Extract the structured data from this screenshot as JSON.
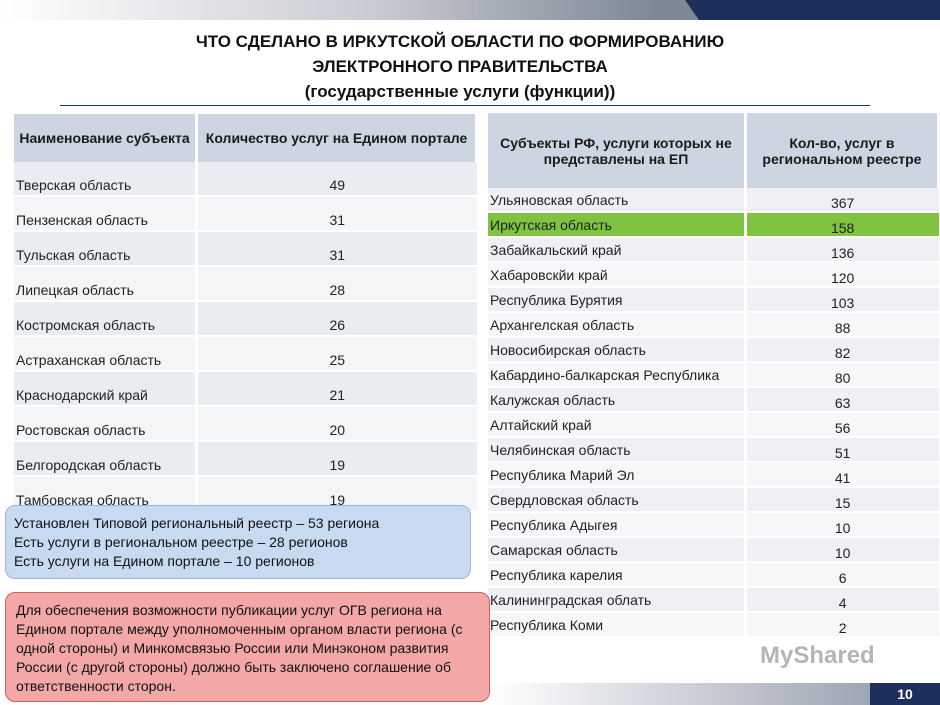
{
  "header": {
    "title_lines": [
      "ЧТО СДЕЛАНО В ИРКУТСКОЙ ОБЛАСТИ ПО ФОРМИРОВАНИЮ",
      "ЭЛЕКТРОННОГО ПРАВИТЕЛЬСТВА",
      "(государственные услуги (функции))"
    ]
  },
  "left_table": {
    "columns": [
      "Наименование субъекта",
      "Количество услуг на Едином портале"
    ],
    "rows": [
      [
        "Тверская область",
        "49"
      ],
      [
        "Пензенская область",
        "31"
      ],
      [
        "Тульская область",
        "31"
      ],
      [
        "Липецкая область",
        "28"
      ],
      [
        "Костромская область",
        "26"
      ],
      [
        "Астраханская область",
        "25"
      ],
      [
        "Краснодарский край",
        "21"
      ],
      [
        "Ростовская область",
        "20"
      ],
      [
        "Белгородская область",
        "19"
      ],
      [
        "Тамбовская область",
        "19"
      ]
    ]
  },
  "right_table": {
    "columns": [
      "Субъекты РФ, услуги которых не представлены на ЕП",
      "Кол-во, услуг в региональном реестре"
    ],
    "rows": [
      [
        "Ульяновская область",
        "367"
      ],
      [
        "Иркутская область",
        "158"
      ],
      [
        "Забайкальский край",
        "136"
      ],
      [
        "Хабаровскйи край",
        "120"
      ],
      [
        "Республика Бурятия",
        "103"
      ],
      [
        "Архангелская область",
        "88"
      ],
      [
        "Новосибирская область",
        "82"
      ],
      [
        "Кабардино-балкарская Республика",
        "80"
      ],
      [
        "Калужская область",
        "63"
      ],
      [
        "Алтайский край",
        "56"
      ],
      [
        "Челябинская область",
        "51"
      ],
      [
        "Республика Марий Эл",
        "41"
      ],
      [
        "Свердловская область",
        "15"
      ],
      [
        "Республика Адыгея",
        "10"
      ],
      [
        "Самарская область",
        "10"
      ],
      [
        "Республика карелия",
        "6"
      ],
      [
        "Калининградская облать",
        "4"
      ],
      [
        "Республика Коми",
        "2"
      ]
    ]
  },
  "info_note": {
    "lines": [
      "Установлен Типовой региональный реестр – 53 региона",
      "Есть услуги в региональном реестре – 28 регионов",
      "Есть услуги на Едином портале – 10 регионов"
    ]
  },
  "warning_note": {
    "text": "Для обеспечения возможности публикации услуг ОГВ региона на Едином портале между уполномоченным органом власти региона (с одной стороны) и Минкомсвязью России или Минэконом развития России (с другой стороны) должно быть заключено соглашение об ответственности сторон."
  },
  "watermark": "MyShared",
  "page_number": "10"
}
